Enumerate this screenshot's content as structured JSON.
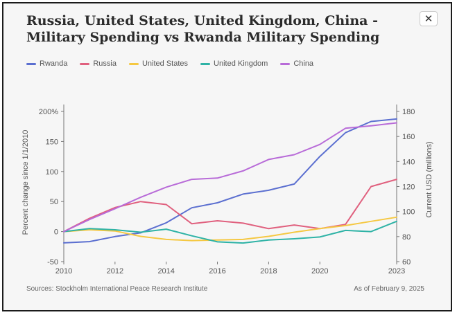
{
  "window": {
    "close_label": "✕",
    "close_icon": "close-icon"
  },
  "footer": {
    "source": "Sources: Stockholm International Peace Research Institute",
    "asof": "As of February 9, 2025"
  },
  "chart_data": {
    "type": "line",
    "title": "Russia, United States, United Kingdom, China - Military Spending vs Rwanda Military Spending",
    "ylabel_left": "Percent change since 1/1/2010",
    "ylabel_right": "Current USD (millions)",
    "x": [
      2010,
      2011,
      2012,
      2013,
      2014,
      2015,
      2016,
      2017,
      2018,
      2019,
      2020,
      2021,
      2022,
      2023
    ],
    "x_ticks": [
      "2010",
      "2012",
      "2014",
      "2016",
      "2018",
      "2020",
      "2023"
    ],
    "x_tick_values": [
      2010,
      2012,
      2014,
      2016,
      2018,
      2020,
      2023
    ],
    "ylim_left": [
      -50,
      200
    ],
    "yticks_left": [
      "200%",
      "150",
      "100",
      "50",
      "0",
      "-50"
    ],
    "yticks_left_values": [
      200,
      150,
      100,
      50,
      0,
      -50
    ],
    "ylim_right": [
      60,
      180
    ],
    "yticks_right": [
      "180",
      "160",
      "140",
      "120",
      "100",
      "80",
      "60"
    ],
    "yticks_right_values": [
      180,
      160,
      140,
      120,
      100,
      80,
      60
    ],
    "grid": false,
    "legend_position": "top-left",
    "series": [
      {
        "name": "Rwanda",
        "axis": "right",
        "color": "#5b6fd0",
        "values": [
          75,
          76,
          80,
          83,
          91,
          103,
          107,
          114,
          117,
          122,
          144,
          163,
          172,
          174
        ]
      },
      {
        "name": "Russia",
        "axis": "left",
        "color": "#e0607e",
        "values": [
          0,
          22,
          40,
          50,
          45,
          13,
          18,
          14,
          5,
          11,
          5,
          12,
          75,
          87
        ]
      },
      {
        "name": "United States",
        "axis": "left",
        "color": "#f5c842",
        "values": [
          0,
          3,
          1,
          -8,
          -13,
          -15,
          -14,
          -13,
          -8,
          -1,
          5,
          10,
          17,
          24
        ]
      },
      {
        "name": "United Kingdom",
        "axis": "left",
        "color": "#2fb3a6",
        "values": [
          0,
          5,
          3,
          -1,
          4,
          -7,
          -17,
          -19,
          -14,
          -12,
          -9,
          2,
          0,
          17
        ]
      },
      {
        "name": "China",
        "axis": "left",
        "color": "#b86bd8",
        "values": [
          0,
          20,
          38,
          57,
          74,
          87,
          89,
          101,
          120,
          128,
          145,
          172,
          176,
          181
        ]
      }
    ]
  }
}
